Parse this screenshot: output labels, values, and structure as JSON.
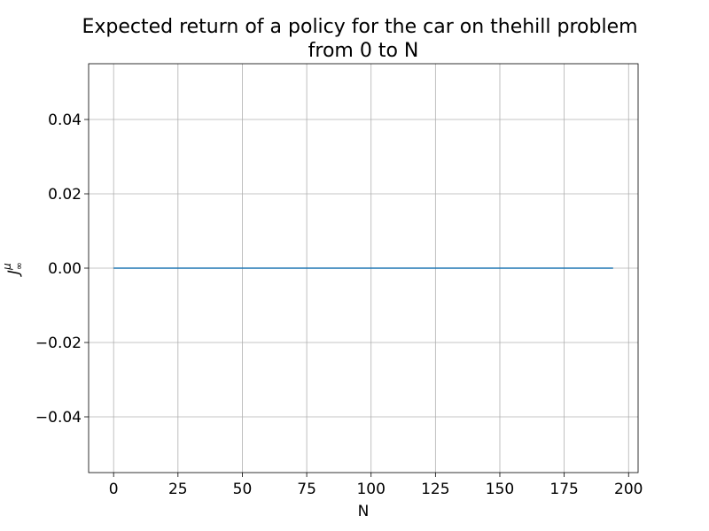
{
  "chart_data": {
    "type": "line",
    "title": "Expected return of a policy for the car on thehill problem\nfrom 0 to N",
    "xlabel": "N",
    "ylabel": "J",
    "ylabel_sup": "μ",
    "ylabel_sub": "∞",
    "xlim": [
      -9.7,
      203.7
    ],
    "ylim": [
      -0.055,
      0.055
    ],
    "xticks": [
      0,
      25,
      50,
      75,
      100,
      125,
      150,
      175,
      200
    ],
    "yticks": [
      -0.04,
      -0.02,
      0.0,
      0.02,
      0.04
    ],
    "ytick_labels": [
      "−0.04",
      "−0.02",
      "0.00",
      "0.02",
      "0.04"
    ],
    "grid": true,
    "series": [
      {
        "color": "#1f77b4",
        "x": [
          0,
          194
        ],
        "y": [
          0,
          0
        ]
      }
    ]
  }
}
